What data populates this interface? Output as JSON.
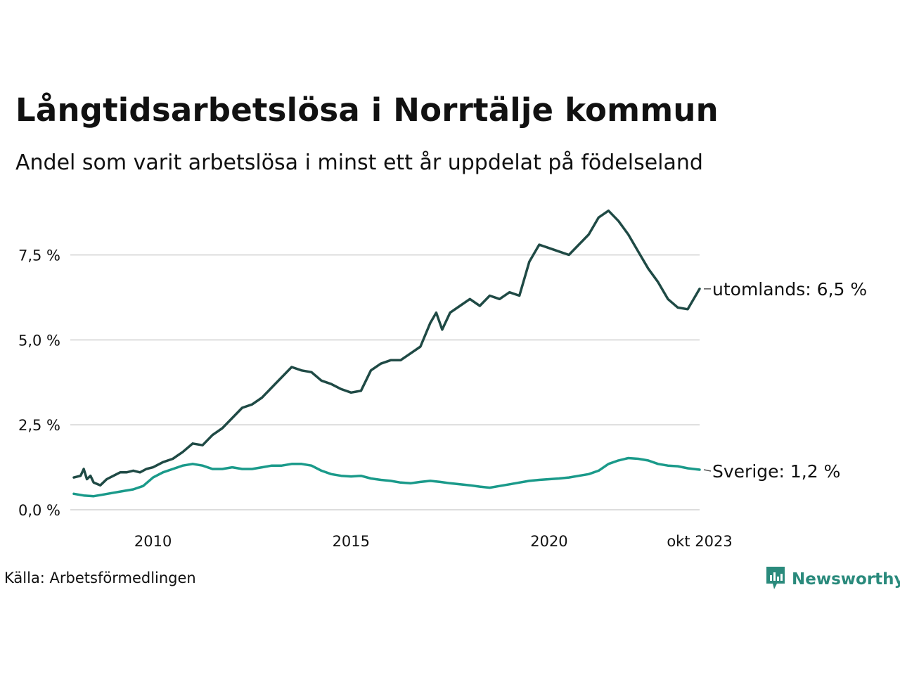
{
  "title": "Långtidsarbetslösa i Norrtälje kommun",
  "subtitle": "Andel som varit arbetslösa i minst ett år uppdelat på födelseland",
  "source": "Källa: Arbetsförmedlingen",
  "brand": {
    "name": "Newsworthy",
    "icon": "newsworthy-logo-icon",
    "color": "#2a8a7c"
  },
  "chart_data": {
    "type": "line",
    "title": "Långtidsarbetslösa i Norrtälje kommun",
    "ylim": [
      0,
      9
    ],
    "yticks": [
      0,
      2.5,
      5,
      7.5
    ],
    "ytick_labels": [
      "0,0 %",
      "2,5 %",
      "5,0 %",
      "7,5 %"
    ],
    "xlim": [
      2008.0,
      2023.8
    ],
    "xticks": [
      2010,
      2015,
      2020,
      2023.8
    ],
    "xtick_labels": [
      "2010",
      "2015",
      "2020",
      "okt 2023"
    ],
    "grid": true,
    "series": [
      {
        "name": "utomlands",
        "label": "utomlands: 6,5 %",
        "color": "#1f4a45",
        "x": [
          2008.0,
          2008.17,
          2008.25,
          2008.33,
          2008.42,
          2008.5,
          2008.67,
          2008.83,
          2009.0,
          2009.17,
          2009.33,
          2009.5,
          2009.67,
          2009.83,
          2010.0,
          2010.25,
          2010.5,
          2010.75,
          2011.0,
          2011.25,
          2011.5,
          2011.75,
          2012.0,
          2012.25,
          2012.5,
          2012.75,
          2013.0,
          2013.25,
          2013.5,
          2013.75,
          2014.0,
          2014.25,
          2014.5,
          2014.75,
          2015.0,
          2015.25,
          2015.5,
          2015.75,
          2016.0,
          2016.25,
          2016.5,
          2016.75,
          2017.0,
          2017.15,
          2017.3,
          2017.5,
          2017.75,
          2018.0,
          2018.25,
          2018.5,
          2018.75,
          2019.0,
          2019.25,
          2019.5,
          2019.75,
          2020.0,
          2020.25,
          2020.5,
          2020.75,
          2021.0,
          2021.25,
          2021.5,
          2021.75,
          2022.0,
          2022.25,
          2022.5,
          2022.75,
          2023.0,
          2023.25,
          2023.5,
          2023.8
        ],
        "y": [
          0.95,
          1.0,
          1.2,
          0.9,
          1.0,
          0.8,
          0.72,
          0.9,
          1.0,
          1.1,
          1.1,
          1.15,
          1.1,
          1.2,
          1.25,
          1.4,
          1.5,
          1.7,
          1.95,
          1.9,
          2.2,
          2.4,
          2.7,
          3.0,
          3.1,
          3.3,
          3.6,
          3.9,
          4.2,
          4.1,
          4.05,
          3.8,
          3.7,
          3.55,
          3.45,
          3.5,
          4.1,
          4.3,
          4.4,
          4.4,
          4.6,
          4.8,
          5.5,
          5.8,
          5.3,
          5.8,
          6.0,
          6.2,
          6.0,
          6.3,
          6.2,
          6.4,
          6.3,
          7.3,
          7.8,
          7.7,
          7.6,
          7.5,
          7.8,
          8.1,
          8.6,
          8.8,
          8.5,
          8.1,
          7.6,
          7.1,
          6.7,
          6.2,
          5.95,
          5.9,
          6.5
        ]
      },
      {
        "name": "Sverige",
        "label": "Sverige: 1,2 %",
        "color": "#1a9a8a",
        "x": [
          2008.0,
          2008.25,
          2008.5,
          2008.75,
          2009.0,
          2009.25,
          2009.5,
          2009.75,
          2010.0,
          2010.25,
          2010.5,
          2010.75,
          2011.0,
          2011.25,
          2011.5,
          2011.75,
          2012.0,
          2012.25,
          2012.5,
          2012.75,
          2013.0,
          2013.25,
          2013.5,
          2013.75,
          2014.0,
          2014.25,
          2014.5,
          2014.75,
          2015.0,
          2015.25,
          2015.5,
          2015.75,
          2016.0,
          2016.25,
          2016.5,
          2016.75,
          2017.0,
          2017.25,
          2017.5,
          2017.75,
          2018.0,
          2018.25,
          2018.5,
          2018.75,
          2019.0,
          2019.25,
          2019.5,
          2019.75,
          2020.0,
          2020.25,
          2020.5,
          2020.75,
          2021.0,
          2021.25,
          2021.5,
          2021.75,
          2022.0,
          2022.25,
          2022.5,
          2022.75,
          2023.0,
          2023.25,
          2023.5,
          2023.8
        ],
        "y": [
          0.47,
          0.42,
          0.4,
          0.45,
          0.5,
          0.55,
          0.6,
          0.7,
          0.95,
          1.1,
          1.2,
          1.3,
          1.35,
          1.3,
          1.2,
          1.2,
          1.25,
          1.2,
          1.2,
          1.25,
          1.3,
          1.3,
          1.35,
          1.35,
          1.3,
          1.15,
          1.05,
          1.0,
          0.98,
          1.0,
          0.92,
          0.88,
          0.85,
          0.8,
          0.78,
          0.82,
          0.85,
          0.82,
          0.78,
          0.75,
          0.72,
          0.68,
          0.65,
          0.7,
          0.75,
          0.8,
          0.85,
          0.88,
          0.9,
          0.92,
          0.95,
          1.0,
          1.05,
          1.15,
          1.35,
          1.45,
          1.52,
          1.5,
          1.45,
          1.35,
          1.3,
          1.28,
          1.22,
          1.18
        ]
      }
    ]
  }
}
